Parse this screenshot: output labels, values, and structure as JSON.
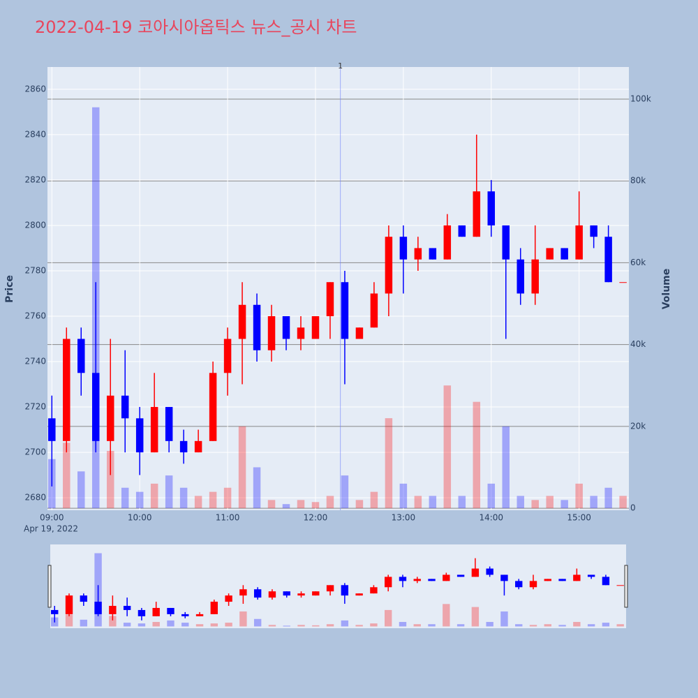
{
  "chart_data": {
    "type": "candlestick",
    "title": "2022-04-19 코아시아옵틱스 뉴스_공시 차트",
    "y_label": "Price",
    "y2_label": "Volume",
    "x_date_label": "Apr 19, 2022",
    "x": [
      "2022-04-19 09:00",
      "2022-04-19 09:10",
      "2022-04-19 09:20",
      "2022-04-19 09:30",
      "2022-04-19 09:40",
      "2022-04-19 09:50",
      "2022-04-19 10:00",
      "2022-04-19 10:10",
      "2022-04-19 10:20",
      "2022-04-19 10:30",
      "2022-04-19 10:40",
      "2022-04-19 10:50",
      "2022-04-19 11:00",
      "2022-04-19 11:10",
      "2022-04-19 11:20",
      "2022-04-19 11:30",
      "2022-04-19 11:40",
      "2022-04-19 11:50",
      "2022-04-19 12:00",
      "2022-04-19 12:10",
      "2022-04-19 12:20",
      "2022-04-19 12:30",
      "2022-04-19 12:40",
      "2022-04-19 12:50",
      "2022-04-19 13:00",
      "2022-04-19 13:10",
      "2022-04-19 13:20",
      "2022-04-19 13:30",
      "2022-04-19 13:40",
      "2022-04-19 13:50",
      "2022-04-19 14:00",
      "2022-04-19 14:10",
      "2022-04-19 14:20",
      "2022-04-19 14:30",
      "2022-04-19 14:40",
      "2022-04-19 14:50",
      "2022-04-19 15:00",
      "2022-04-19 15:10",
      "2022-04-19 15:20",
      "2022-04-19 15:30"
    ],
    "open": [
      2715,
      2705,
      2750,
      2735,
      2705,
      2725,
      2715,
      2700,
      2720,
      2705,
      2700,
      2705,
      2735,
      2750,
      2765,
      2745,
      2760,
      2750,
      2750,
      2760,
      2775,
      2750,
      2755,
      2770,
      2795,
      2785,
      2790,
      2785,
      2800,
      2795,
      2815,
      2800,
      2785,
      2770,
      2785,
      2790,
      2785,
      2800,
      2795,
      2775
    ],
    "high": [
      2725,
      2755,
      2755,
      2775,
      2750,
      2745,
      2720,
      2735,
      2720,
      2710,
      2710,
      2740,
      2755,
      2775,
      2770,
      2765,
      2760,
      2760,
      2760,
      2775,
      2780,
      2755,
      2775,
      2800,
      2800,
      2795,
      2790,
      2805,
      2800,
      2840,
      2820,
      2800,
      2790,
      2800,
      2790,
      2790,
      2815,
      2800,
      2800,
      2775
    ],
    "low": [
      2685,
      2700,
      2725,
      2700,
      2690,
      2700,
      2690,
      2700,
      2700,
      2695,
      2700,
      2705,
      2725,
      2730,
      2740,
      2740,
      2745,
      2745,
      2750,
      2750,
      2730,
      2750,
      2755,
      2760,
      2770,
      2780,
      2785,
      2785,
      2795,
      2795,
      2795,
      2750,
      2765,
      2765,
      2785,
      2785,
      2785,
      2790,
      2775,
      2775
    ],
    "close": [
      2705,
      2750,
      2735,
      2705,
      2725,
      2715,
      2700,
      2720,
      2705,
      2700,
      2705,
      2735,
      2750,
      2765,
      2745,
      2760,
      2750,
      2755,
      2760,
      2775,
      2750,
      2755,
      2770,
      2795,
      2785,
      2790,
      2785,
      2800,
      2795,
      2815,
      2800,
      2785,
      2770,
      2785,
      2790,
      2785,
      2800,
      2795,
      2775,
      2775
    ],
    "volume": [
      12000,
      16000,
      9000,
      98000,
      14000,
      5000,
      4000,
      6000,
      8000,
      5000,
      3000,
      4000,
      5000,
      20000,
      10000,
      2000,
      1000,
      2000,
      1500,
      3000,
      8000,
      2000,
      4000,
      22000,
      6000,
      3000,
      3000,
      30000,
      3000,
      26000,
      6000,
      20000,
      3000,
      2000,
      3000,
      2000,
      6000,
      3000,
      5000,
      3000
    ],
    "increasing_color": "#ff0000",
    "decreasing_color": "#0000ff",
    "annotations": [
      {
        "x": "2022-04-19 12:17",
        "text": "1"
      }
    ],
    "xlim": [
      "2022-04-19 08:57",
      "2022-04-19 15:34"
    ],
    "xticks": [
      {
        "value": "2022-04-19 09:00",
        "label": "09:00"
      },
      {
        "value": "2022-04-19 10:00",
        "label": "10:00"
      },
      {
        "value": "2022-04-19 11:00",
        "label": "11:00"
      },
      {
        "value": "2022-04-19 12:00",
        "label": "12:00"
      },
      {
        "value": "2022-04-19 13:00",
        "label": "13:00"
      },
      {
        "value": "2022-04-19 14:00",
        "label": "14:00"
      },
      {
        "value": "2022-04-19 15:00",
        "label": "15:00"
      }
    ],
    "ylim": [
      2674.5,
      2869.8
    ],
    "yticks": [
      2680,
      2700,
      2720,
      2740,
      2760,
      2780,
      2800,
      2820,
      2840,
      2860
    ],
    "y2lim": [
      -500,
      107850
    ],
    "y2ticks": [
      0,
      {
        "value": 20000,
        "label": "20k"
      },
      {
        "value": 40000,
        "label": "40k"
      },
      {
        "value": 60000,
        "label": "60k"
      },
      {
        "value": 80000,
        "label": "80k"
      },
      {
        "value": 100000,
        "label": "100k"
      }
    ],
    "grid": true,
    "rangeslider": true
  }
}
